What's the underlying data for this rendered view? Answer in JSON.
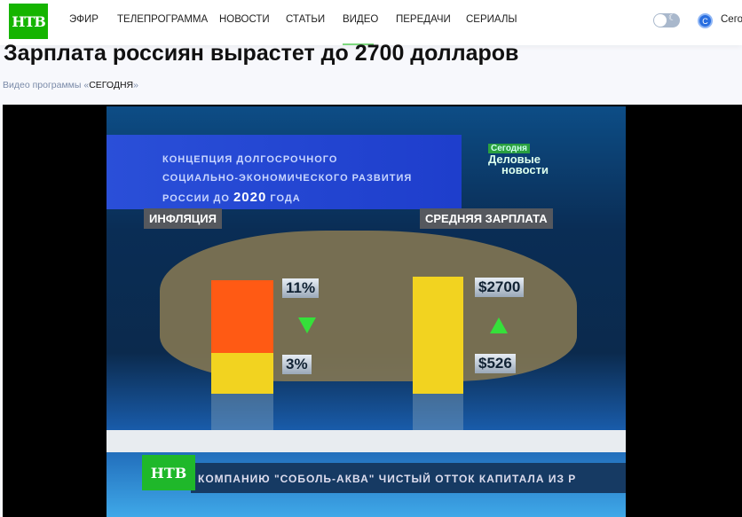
{
  "header": {
    "logo": "НТВ",
    "nav": [
      "ЭФИР",
      "ТЕЛЕПРОГРАММА",
      "НОВОСТИ",
      "СТАТЬИ",
      "ВИДЕО",
      "ПЕРЕДАЧИ",
      "СЕРИАЛЫ"
    ],
    "active_nav": "ВИДЕО",
    "avatar_letter": "С",
    "user_label": "Сегодня",
    "theme_toggle_icon": "moon-icon"
  },
  "article": {
    "title": "Зарплата россиян вырастет до 2700 долларов",
    "sub_prefix": "Видео программы «",
    "program": "СЕГОДНЯ",
    "sub_suffix": "»"
  },
  "video": {
    "banner_line1": "КОНЦЕПЦИЯ ДОЛГОСРОЧНОГО",
    "banner_line2": "СОЦИАЛЬНО-ЭКОНОМИЧЕСКОГО РАЗВИТИЯ",
    "banner_line3_prefix": "РОССИИ ДО ",
    "banner_year": "2020",
    "banner_line3_suffix": " ГОДА",
    "brand_top": "Сегодня",
    "brand_l1": "Деловые",
    "brand_l2": "новости",
    "inflation_label": "ИНФЛЯЦИЯ",
    "inflation_from": "11%",
    "inflation_to": "3%",
    "salary_label": "СРЕДНЯЯ ЗАРПЛАТА",
    "salary_to": "$2700",
    "salary_from": "$526",
    "ticker_logo": "НТВ",
    "ticker_text": "КОМПАНИЮ \"СОБОЛЬ-АКВА\"      ЧИСТЫЙ ОТТОК КАПИТАЛА ИЗ Р",
    "colors": {
      "orange": "#ff5a14",
      "yellow": "#f2d320",
      "arrow": "#35e03a"
    }
  }
}
